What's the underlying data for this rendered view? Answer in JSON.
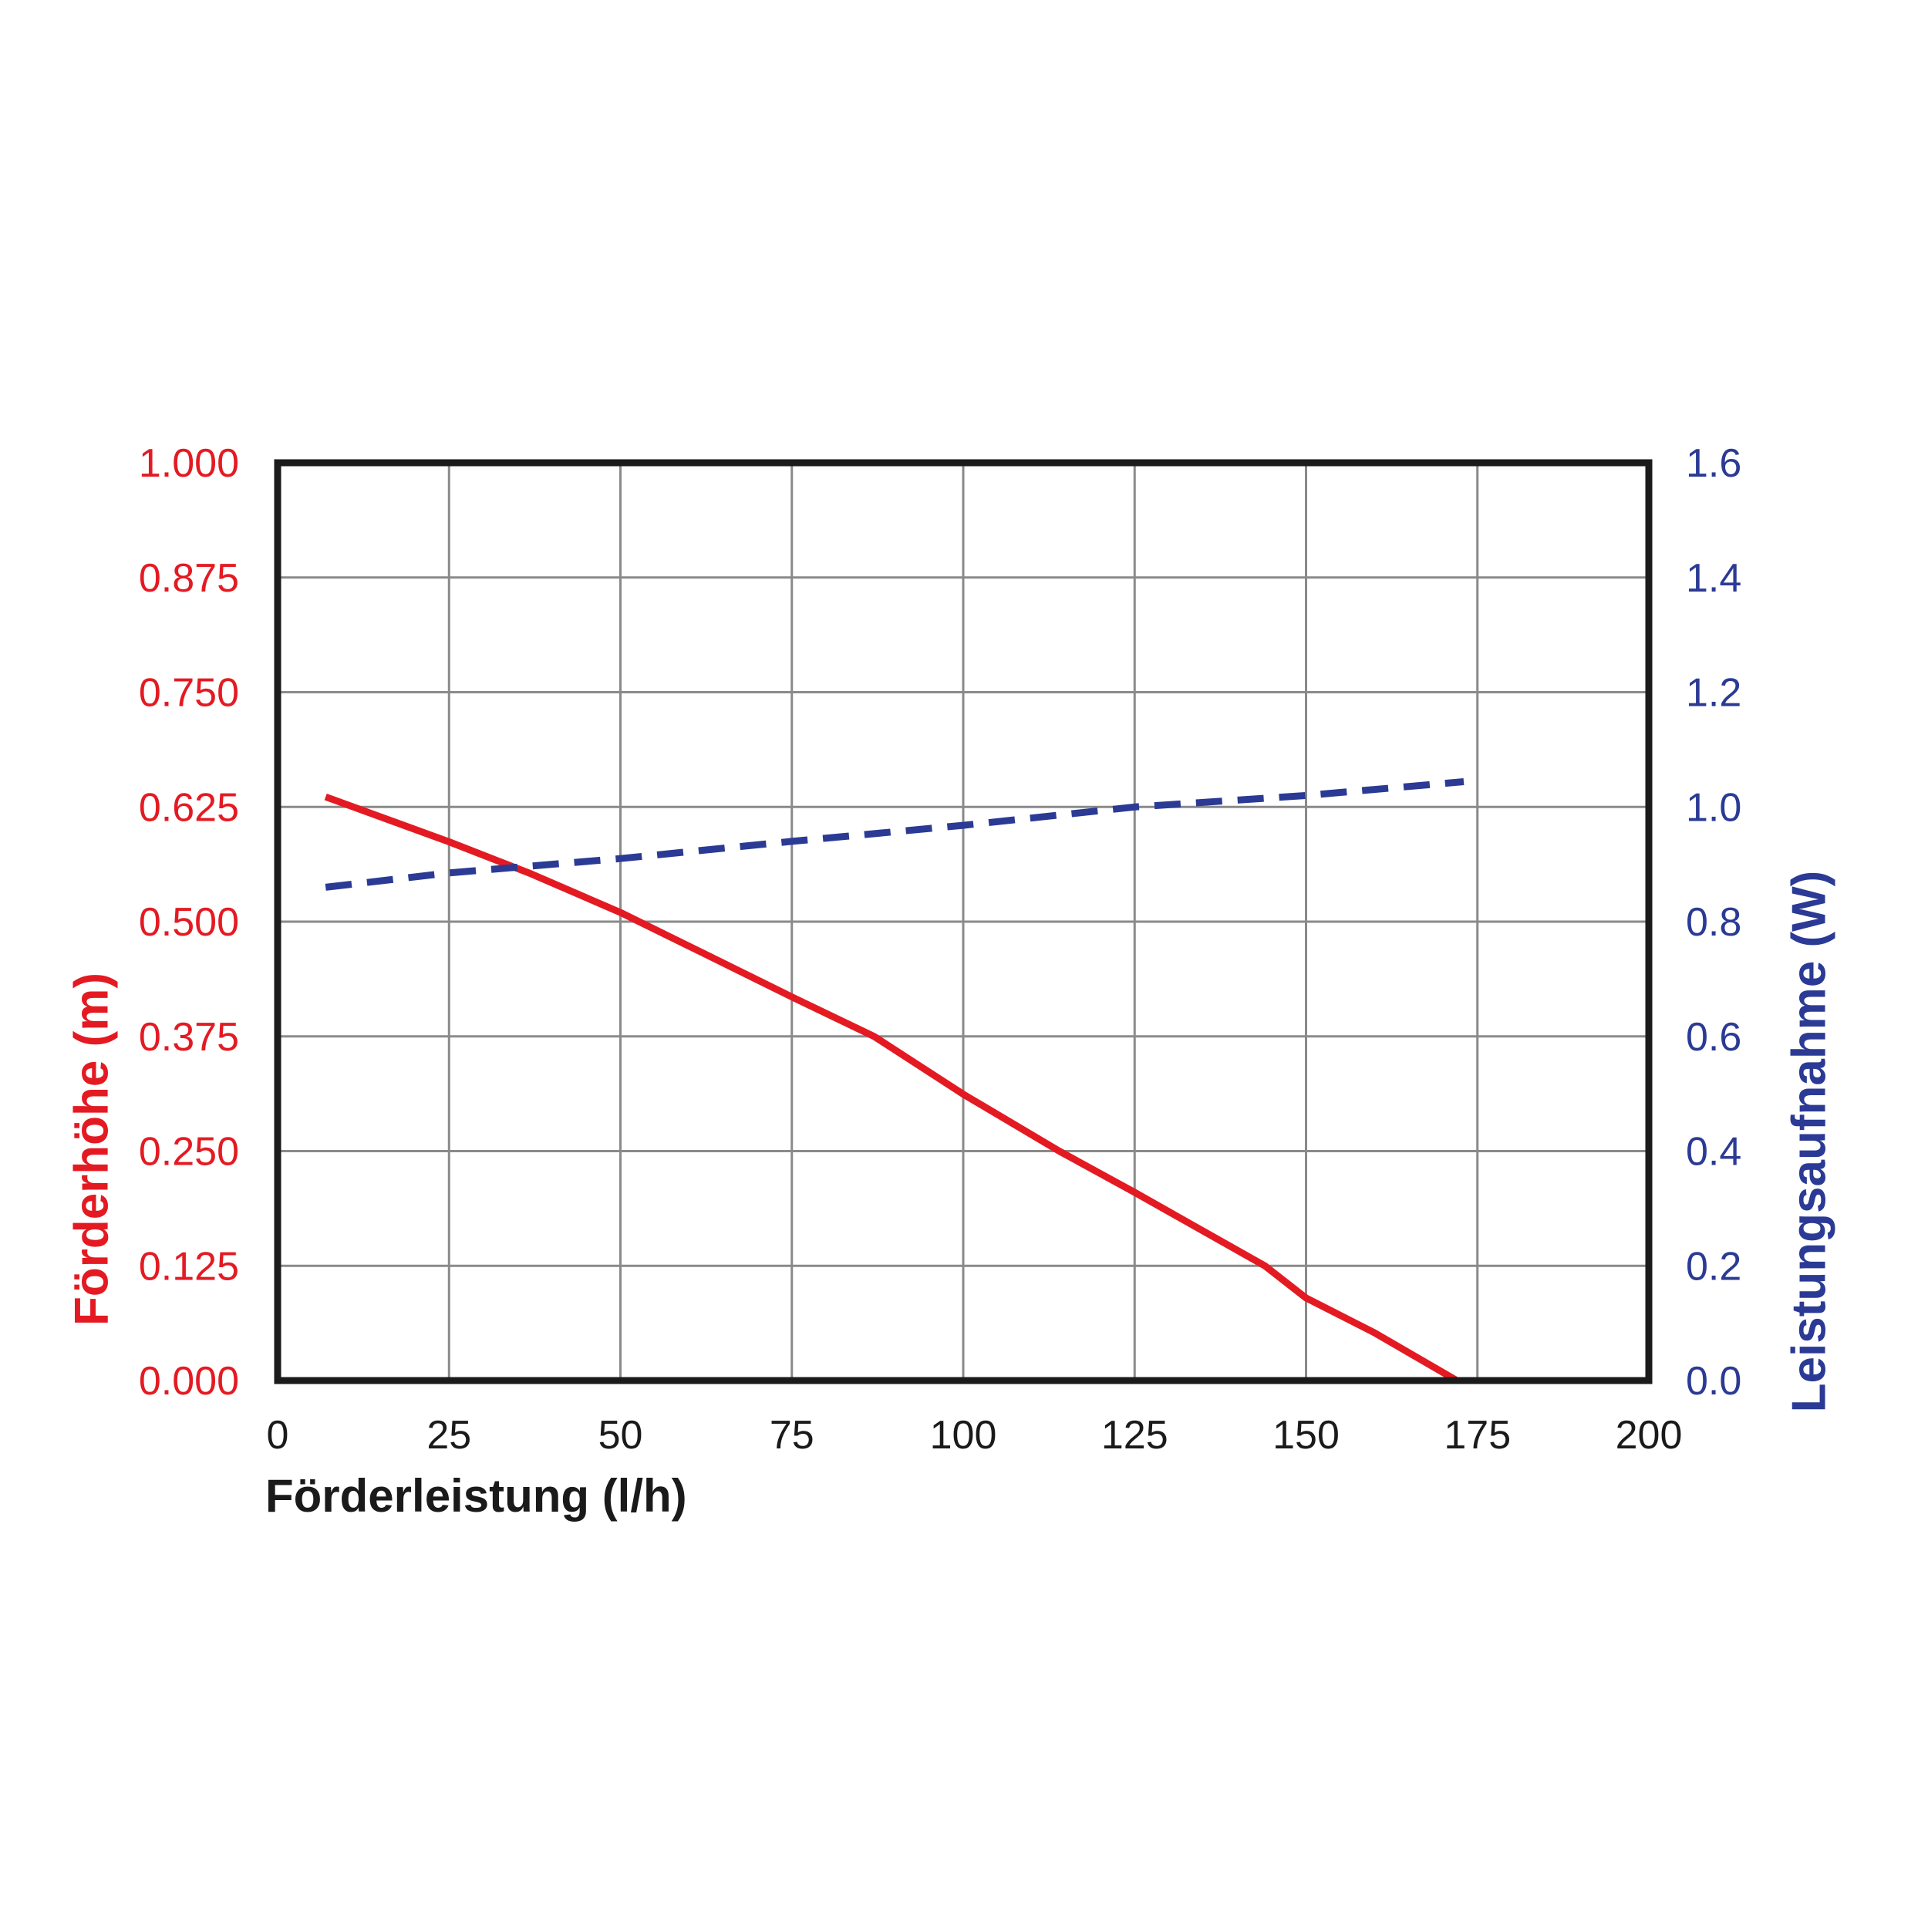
{
  "page": {
    "background": "#ffffff"
  },
  "chart_data": {
    "type": "line",
    "title": "",
    "grid": {
      "show": true,
      "color": "#8a8a8a"
    },
    "border_color": "#1b1b1b",
    "x_axis": {
      "label": "Förderleistung (l/h)",
      "color": "#1a1a1a",
      "min": 0,
      "max": 200,
      "tick_values": [
        0,
        25,
        50,
        75,
        100,
        125,
        150,
        175,
        200
      ],
      "tick_labels": [
        "0",
        "25",
        "50",
        "75",
        "100",
        "125",
        "150",
        "175",
        "200"
      ]
    },
    "y_axis_left": {
      "label": "Förderhöhe (m)",
      "color": "#e41a22",
      "min": 0,
      "max": 1,
      "tick_values": [
        1.0,
        0.875,
        0.75,
        0.625,
        0.5,
        0.375,
        0.25,
        0.125,
        0.0
      ],
      "tick_labels": [
        "1.000",
        "0.875",
        "0.750",
        "0.625",
        "0.500",
        "0.375",
        "0.250",
        "0.125",
        "0.000"
      ]
    },
    "y_axis_right": {
      "label": "Leistungsaufnahme (W)",
      "color": "#2b3a94",
      "min": 0,
      "max": 1.6,
      "tick_values": [
        1.6,
        1.4,
        1.2,
        1.0,
        0.8,
        0.6,
        0.4,
        0.2,
        0.0
      ],
      "tick_labels": [
        "1.6",
        "1.4",
        "1.2",
        "1.0",
        "0.8",
        "0.6",
        "0.4",
        "0.2",
        "0.0"
      ]
    },
    "series": [
      {
        "name": "Förderhöhe",
        "axis": "left",
        "color": "#e41a22",
        "line_style": "solid",
        "points": [
          [
            7,
            0.636
          ],
          [
            25,
            0.587
          ],
          [
            37,
            0.552
          ],
          [
            50,
            0.51
          ],
          [
            62,
            0.466
          ],
          [
            75,
            0.418
          ],
          [
            87,
            0.375
          ],
          [
            100,
            0.312
          ],
          [
            114,
            0.25
          ],
          [
            125,
            0.205
          ],
          [
            144,
            0.125
          ],
          [
            150,
            0.09
          ],
          [
            160,
            0.052
          ],
          [
            172,
            0.0
          ]
        ]
      },
      {
        "name": "Leistungsaufnahme",
        "axis": "right",
        "color": "#2b3a94",
        "line_style": "dashed",
        "points": [
          [
            7,
            0.86
          ],
          [
            25,
            0.885
          ],
          [
            50,
            0.91
          ],
          [
            75,
            0.94
          ],
          [
            100,
            0.968
          ],
          [
            125,
            1.0
          ],
          [
            150,
            1.02
          ],
          [
            173,
            1.044
          ]
        ]
      }
    ]
  }
}
